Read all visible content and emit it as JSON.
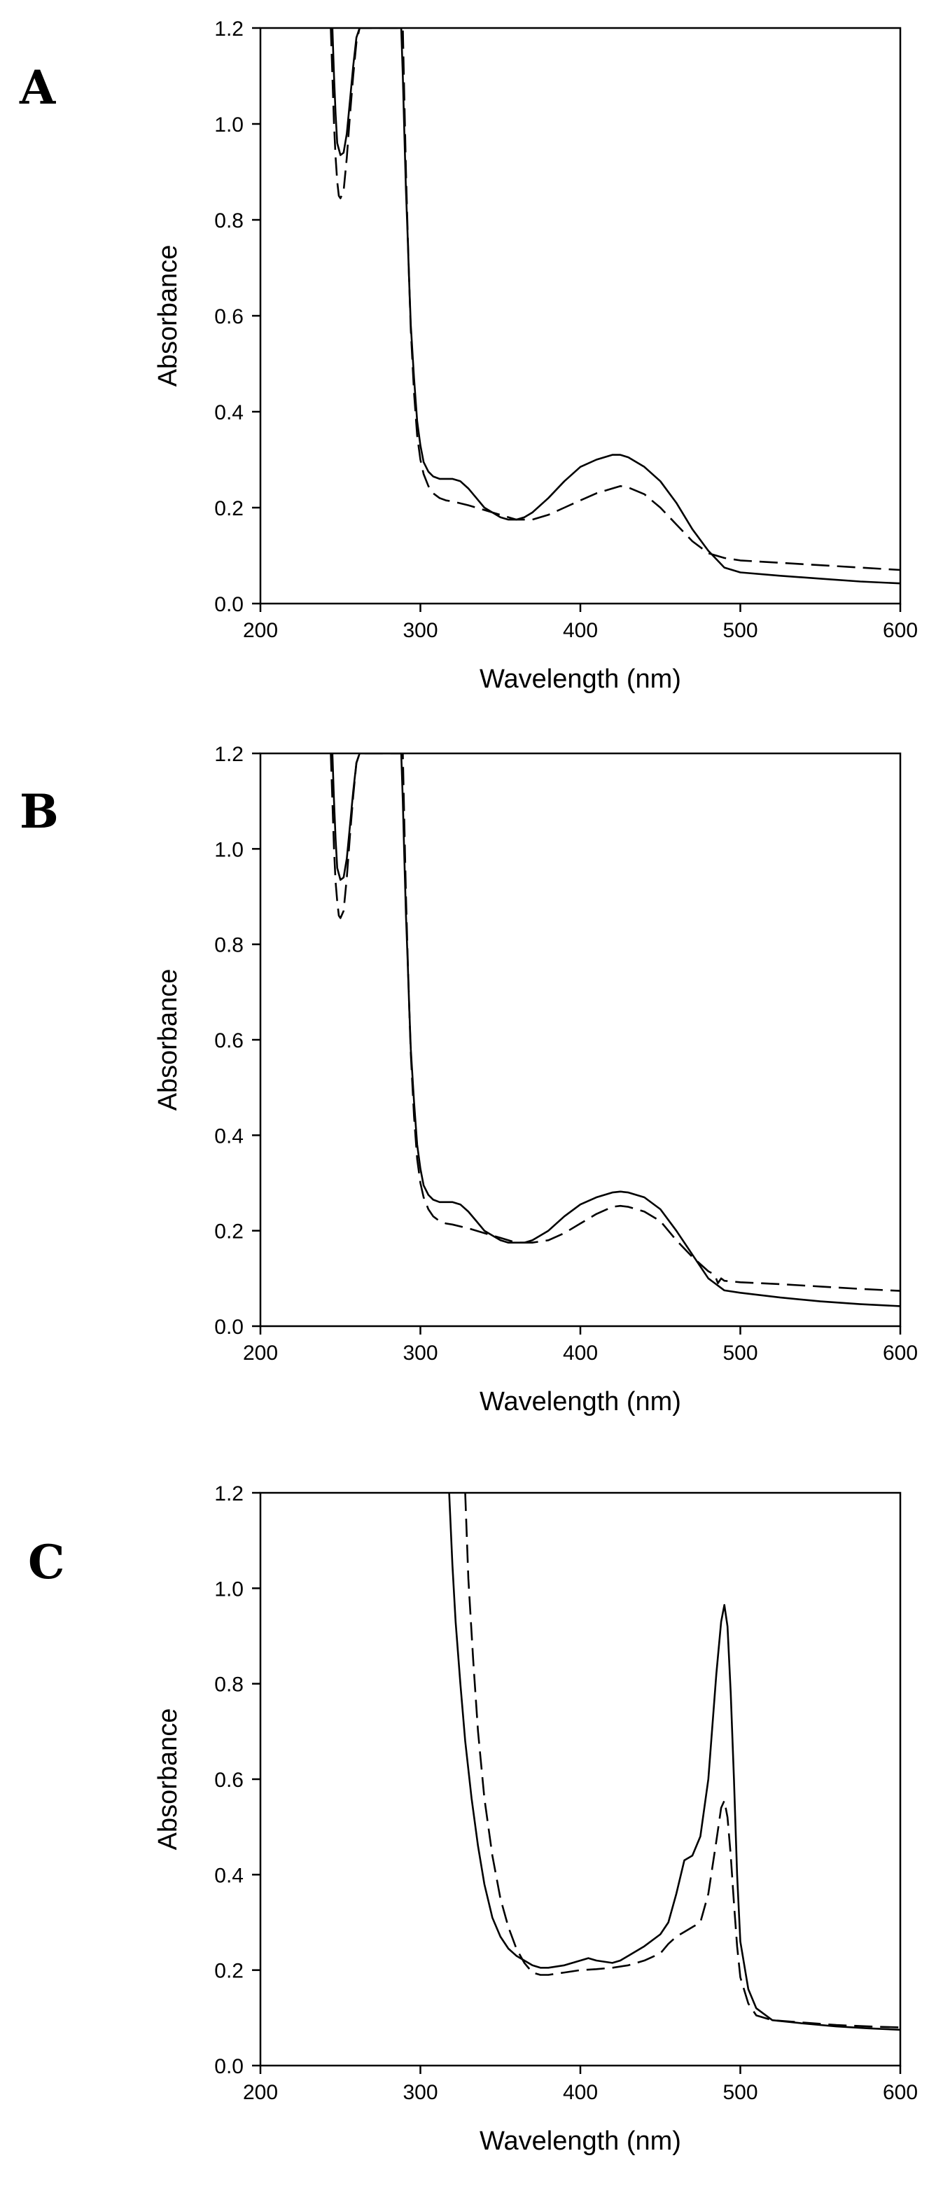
{
  "chart_data": [
    {
      "panel": "A",
      "type": "line",
      "xlabel": "Wavelength (nm)",
      "ylabel": "Absorbance",
      "xlim": [
        200,
        600
      ],
      "ylim": [
        0.0,
        1.2
      ],
      "xticks": [
        "200",
        "300",
        "400",
        "500",
        "600"
      ],
      "yticks": [
        "0.0",
        "0.2",
        "0.4",
        "0.6",
        "0.8",
        "1.0",
        "1.2"
      ],
      "grid": false,
      "legend": "none",
      "series": [
        {
          "style": "solid",
          "x": [
            245,
            246,
            247,
            248,
            250,
            252,
            254,
            256,
            258,
            260,
            262,
            288,
            289,
            290,
            291,
            292,
            293,
            294,
            296,
            298,
            300,
            302,
            305,
            308,
            312,
            316,
            320,
            325,
            330,
            335,
            340,
            345,
            350,
            355,
            360,
            365,
            370,
            380,
            390,
            400,
            410,
            420,
            425,
            430,
            440,
            450,
            460,
            470,
            480,
            490,
            500,
            525,
            550,
            575,
            600
          ],
          "y": [
            1.2,
            1.1,
            1.02,
            0.96,
            0.935,
            0.94,
            0.98,
            1.05,
            1.12,
            1.18,
            1.2,
            1.2,
            1.1,
            0.98,
            0.86,
            0.77,
            0.67,
            0.58,
            0.47,
            0.38,
            0.33,
            0.295,
            0.275,
            0.265,
            0.26,
            0.26,
            0.26,
            0.255,
            0.24,
            0.22,
            0.2,
            0.19,
            0.18,
            0.175,
            0.175,
            0.18,
            0.19,
            0.22,
            0.255,
            0.285,
            0.3,
            0.31,
            0.31,
            0.305,
            0.285,
            0.255,
            0.21,
            0.155,
            0.11,
            0.075,
            0.065,
            0.058,
            0.052,
            0.046,
            0.042
          ]
        },
        {
          "style": "dashed",
          "x": [
            244,
            245,
            246,
            247,
            248,
            249,
            250,
            252,
            254,
            256,
            258,
            260,
            262,
            289,
            290,
            291,
            292,
            293,
            294,
            296,
            298,
            300,
            302,
            305,
            308,
            312,
            316,
            320,
            330,
            340,
            350,
            360,
            370,
            380,
            390,
            400,
            410,
            420,
            425,
            430,
            440,
            450,
            460,
            470,
            480,
            490,
            500,
            525,
            550,
            575,
            600
          ],
          "y": [
            1.2,
            1.1,
            1.0,
            0.93,
            0.88,
            0.85,
            0.845,
            0.86,
            0.93,
            1.02,
            1.1,
            1.17,
            1.2,
            1.2,
            1.05,
            0.9,
            0.78,
            0.67,
            0.57,
            0.44,
            0.35,
            0.3,
            0.27,
            0.245,
            0.23,
            0.22,
            0.215,
            0.213,
            0.205,
            0.195,
            0.185,
            0.175,
            0.175,
            0.185,
            0.2,
            0.215,
            0.23,
            0.24,
            0.245,
            0.242,
            0.228,
            0.2,
            0.165,
            0.13,
            0.105,
            0.095,
            0.09,
            0.085,
            0.08,
            0.075,
            0.07
          ]
        }
      ]
    },
    {
      "panel": "B",
      "type": "line",
      "xlabel": "Wavelength (nm)",
      "ylabel": "Absorbance",
      "xlim": [
        200,
        600
      ],
      "ylim": [
        0.0,
        1.2
      ],
      "xticks": [
        "200",
        "300",
        "400",
        "500",
        "600"
      ],
      "yticks": [
        "0.0",
        "0.2",
        "0.4",
        "0.6",
        "0.8",
        "1.0",
        "1.2"
      ],
      "grid": false,
      "legend": "none",
      "series": [
        {
          "style": "solid",
          "x": [
            245,
            246,
            247,
            248,
            250,
            252,
            254,
            256,
            258,
            260,
            262,
            288,
            289,
            290,
            291,
            292,
            293,
            294,
            296,
            298,
            300,
            302,
            305,
            308,
            312,
            316,
            320,
            325,
            330,
            335,
            340,
            345,
            350,
            355,
            360,
            365,
            370,
            380,
            390,
            400,
            410,
            420,
            425,
            430,
            440,
            450,
            460,
            470,
            480,
            490,
            500,
            525,
            550,
            575,
            600
          ],
          "y": [
            1.2,
            1.1,
            1.02,
            0.96,
            0.935,
            0.94,
            0.98,
            1.05,
            1.12,
            1.18,
            1.2,
            1.2,
            1.1,
            0.98,
            0.86,
            0.77,
            0.67,
            0.58,
            0.47,
            0.38,
            0.33,
            0.295,
            0.275,
            0.265,
            0.26,
            0.26,
            0.26,
            0.255,
            0.24,
            0.22,
            0.2,
            0.19,
            0.18,
            0.175,
            0.175,
            0.175,
            0.18,
            0.2,
            0.23,
            0.255,
            0.27,
            0.28,
            0.282,
            0.28,
            0.27,
            0.245,
            0.2,
            0.15,
            0.1,
            0.075,
            0.07,
            0.06,
            0.052,
            0.046,
            0.042
          ]
        },
        {
          "style": "dashed",
          "x": [
            244,
            245,
            246,
            247,
            248,
            249,
            250,
            252,
            254,
            256,
            258,
            260,
            262,
            289,
            290,
            291,
            292,
            293,
            294,
            296,
            298,
            300,
            302,
            305,
            308,
            312,
            316,
            320,
            330,
            340,
            350,
            360,
            370,
            380,
            390,
            400,
            410,
            420,
            425,
            430,
            440,
            450,
            460,
            470,
            480,
            484,
            486,
            488,
            490,
            500,
            525,
            550,
            575,
            600
          ],
          "y": [
            1.2,
            1.1,
            1.0,
            0.93,
            0.89,
            0.86,
            0.855,
            0.87,
            0.94,
            1.03,
            1.11,
            1.18,
            1.2,
            1.2,
            1.05,
            0.9,
            0.78,
            0.67,
            0.57,
            0.44,
            0.35,
            0.3,
            0.27,
            0.245,
            0.23,
            0.22,
            0.215,
            0.213,
            0.205,
            0.195,
            0.185,
            0.175,
            0.175,
            0.18,
            0.195,
            0.215,
            0.235,
            0.25,
            0.252,
            0.25,
            0.24,
            0.22,
            0.18,
            0.145,
            0.115,
            0.108,
            0.09,
            0.1,
            0.095,
            0.092,
            0.088,
            0.083,
            0.078,
            0.074
          ]
        }
      ]
    },
    {
      "panel": "C",
      "type": "line",
      "xlabel": "Wavelength (nm)",
      "ylabel": "Absorbance",
      "xlim": [
        200,
        600
      ],
      "ylim": [
        0.0,
        1.2
      ],
      "xticks": [
        "200",
        "300",
        "400",
        "500",
        "600"
      ],
      "yticks": [
        "0.0",
        "0.2",
        "0.4",
        "0.6",
        "0.8",
        "1.0",
        "1.2"
      ],
      "grid": false,
      "legend": "none",
      "series": [
        {
          "style": "solid",
          "x": [
            318,
            320,
            322,
            325,
            328,
            332,
            336,
            340,
            345,
            350,
            355,
            360,
            365,
            370,
            375,
            380,
            390,
            400,
            405,
            410,
            420,
            425,
            430,
            440,
            450,
            455,
            460,
            465,
            470,
            475,
            480,
            485,
            488,
            490,
            492,
            494,
            496,
            498,
            500,
            505,
            510,
            520,
            540,
            560,
            580,
            600
          ],
          "y": [
            1.2,
            1.05,
            0.93,
            0.8,
            0.68,
            0.56,
            0.46,
            0.38,
            0.31,
            0.27,
            0.245,
            0.23,
            0.22,
            0.21,
            0.205,
            0.205,
            0.21,
            0.22,
            0.225,
            0.22,
            0.215,
            0.22,
            0.23,
            0.25,
            0.275,
            0.3,
            0.36,
            0.43,
            0.44,
            0.48,
            0.6,
            0.82,
            0.93,
            0.965,
            0.92,
            0.78,
            0.6,
            0.4,
            0.26,
            0.16,
            0.12,
            0.095,
            0.088,
            0.082,
            0.078,
            0.075
          ]
        },
        {
          "style": "dashed",
          "x": [
            328,
            330,
            333,
            336,
            340,
            345,
            350,
            355,
            360,
            365,
            370,
            375,
            380,
            390,
            400,
            410,
            420,
            430,
            440,
            450,
            455,
            460,
            465,
            470,
            475,
            480,
            485,
            488,
            490,
            492,
            494,
            496,
            498,
            500,
            505,
            510,
            520,
            540,
            560,
            580,
            600
          ],
          "y": [
            1.2,
            1.02,
            0.85,
            0.7,
            0.56,
            0.44,
            0.35,
            0.29,
            0.245,
            0.215,
            0.195,
            0.19,
            0.19,
            0.195,
            0.2,
            0.202,
            0.205,
            0.21,
            0.22,
            0.235,
            0.255,
            0.27,
            0.28,
            0.29,
            0.3,
            0.36,
            0.47,
            0.54,
            0.555,
            0.52,
            0.44,
            0.34,
            0.25,
            0.185,
            0.13,
            0.105,
            0.095,
            0.09,
            0.085,
            0.082,
            0.08
          ]
        }
      ]
    }
  ]
}
